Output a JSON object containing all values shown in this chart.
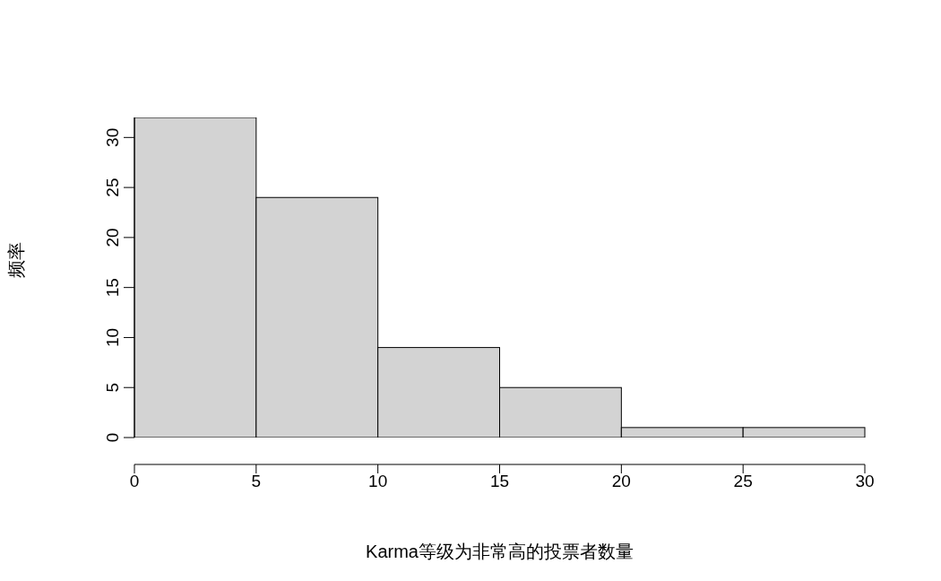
{
  "chart_data": {
    "type": "histogram",
    "xlabel": "Karma等级为非常高的投票者数量",
    "ylabel": "频率",
    "bins": [
      0,
      5,
      10,
      15,
      20,
      25,
      30
    ],
    "values": [
      32,
      24,
      9,
      5,
      1,
      1
    ],
    "color": "#d3d3d3",
    "xlim": [
      0,
      30
    ],
    "xticks": [
      0,
      5,
      10,
      15,
      20,
      25,
      30
    ],
    "ylim": [
      0,
      32
    ],
    "yticks": [
      0,
      5,
      10,
      15,
      20,
      25,
      30
    ]
  }
}
